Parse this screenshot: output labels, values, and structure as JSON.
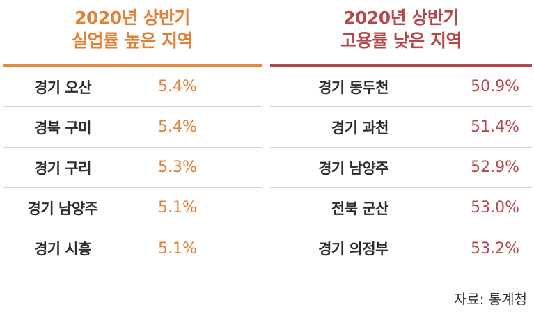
{
  "left_table": {
    "title_line1": "2020년 상반기",
    "title_line2": "실업률 높은 지역",
    "rows": [
      {
        "region": "경기 오산",
        "value": "5.4%"
      },
      {
        "region": "경북 구미",
        "value": "5.4%"
      },
      {
        "region": "경기 구리",
        "value": "5.3%"
      },
      {
        "region": "경기 남양주",
        "value": "5.1%"
      },
      {
        "region": "경기 시흥",
        "value": "5.1%"
      }
    ],
    "color": "#e07f35"
  },
  "right_table": {
    "title_line1": "2020년 상반기",
    "title_line2": "고용률 낮은 지역",
    "rows": [
      {
        "region": "경기 동두천",
        "value": "50.9%"
      },
      {
        "region": "경기 과천",
        "value": "51.4%"
      },
      {
        "region": "경기 남양주",
        "value": "52.9%"
      },
      {
        "region": "전북 군산",
        "value": "53.0%"
      },
      {
        "region": "경기 의정부",
        "value": "53.2%"
      }
    ],
    "color": "#b5474b"
  },
  "source": "자료: 통계청"
}
